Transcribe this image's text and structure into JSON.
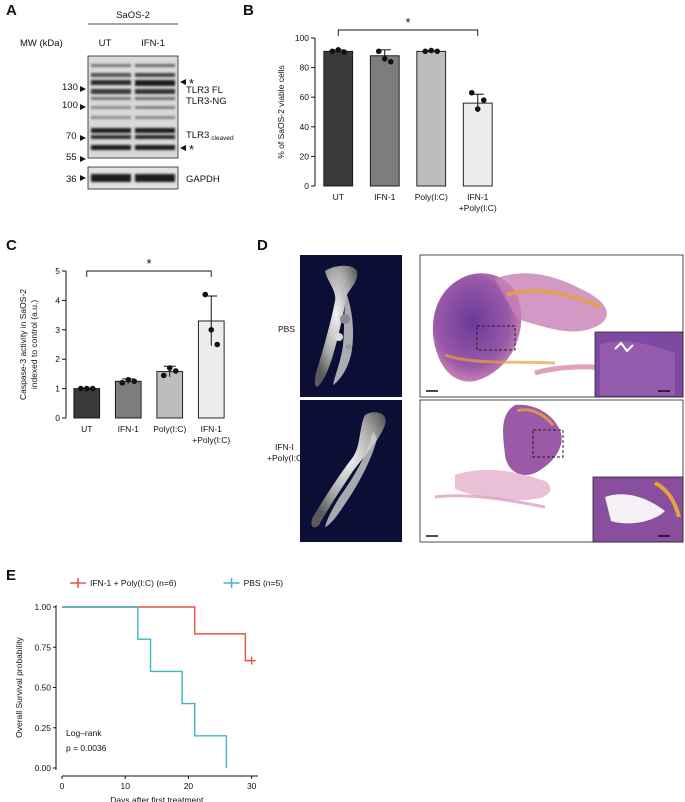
{
  "panels": {
    "A": {
      "letter": "A",
      "cell_line": "SaOS-2",
      "mw_label": "MW (kDa)",
      "lanes": [
        "UT",
        "IFN-1"
      ],
      "markers": [
        "130",
        "100",
        "70",
        "55",
        "36"
      ],
      "bands": {
        "star1": "*",
        "tlr3_fl": "TLR3 FL",
        "tlr3_ng": "TLR3-NG",
        "tlr3": "TLR3",
        "cleaved": "cleaved",
        "star2": "*",
        "gapdh": "GAPDH"
      }
    },
    "B": {
      "letter": "B",
      "significance": "*"
    },
    "C": {
      "letter": "C",
      "significance": "*"
    },
    "D": {
      "letter": "D",
      "rows": [
        {
          "label": [
            "PBS"
          ]
        },
        {
          "label": [
            "IFN-I",
            "+Poly(I:C)"
          ]
        }
      ]
    },
    "E": {
      "letter": "E",
      "logrank_title": "Log–rank",
      "logrank_p": "p = 0.0036"
    }
  },
  "chart_data": [
    {
      "panel": "B",
      "type": "bar",
      "categories": [
        [
          "UT"
        ],
        [
          "IFN-1"
        ],
        [
          "Poly(I:C)"
        ],
        [
          "IFN-1",
          "+Poly(I:C)"
        ]
      ],
      "values": [
        91,
        88,
        91,
        56
      ],
      "errors": [
        1,
        4,
        0.5,
        6
      ],
      "points": [
        [
          91,
          92,
          90.5
        ],
        [
          91,
          86,
          84
        ],
        [
          91,
          91.5,
          91
        ],
        [
          63,
          52,
          58
        ]
      ],
      "bar_colors": [
        "#3a3a3a",
        "#7d7d7d",
        "#bdbdbd",
        "#ececec"
      ],
      "ylabel": "% of SaOS-2 viable cells",
      "ylim": [
        0,
        100
      ],
      "yticks": [
        0,
        20,
        40,
        60,
        80,
        100
      ],
      "significance": {
        "from": 0,
        "to": 3,
        "label": "*"
      }
    },
    {
      "panel": "C",
      "type": "bar",
      "categories": [
        [
          "UT"
        ],
        [
          "IFN-1"
        ],
        [
          "Poly(I:C)"
        ],
        [
          "IFN-1",
          "+Poly(I:C)"
        ]
      ],
      "values": [
        1.0,
        1.25,
        1.58,
        3.3
      ],
      "errors": [
        0.02,
        0.08,
        0.18,
        0.85
      ],
      "points": [
        [
          1.0,
          1.0,
          1.0
        ],
        [
          1.2,
          1.3,
          1.25
        ],
        [
          1.45,
          1.7,
          1.6
        ],
        [
          4.2,
          3.0,
          2.5
        ]
      ],
      "bar_colors": [
        "#3a3a3a",
        "#7d7d7d",
        "#bdbdbd",
        "#ececec"
      ],
      "ylabel": [
        "Caspase-3 activity in SaOS-2",
        "indexed to control (a.u.)"
      ],
      "ylim": [
        0,
        5
      ],
      "yticks": [
        0,
        1,
        2,
        3,
        4,
        5
      ],
      "significance": {
        "from": 0,
        "to": 3,
        "label": "*"
      }
    },
    {
      "panel": "E",
      "type": "line",
      "ylabel": "Overall Survival probability",
      "xlabel": "Days after first treatment",
      "xlim": [
        0,
        31
      ],
      "ylim": [
        0,
        1
      ],
      "xticks": [
        0,
        10,
        20,
        30
      ],
      "yticks": [
        0,
        0.25,
        0.5,
        0.75,
        1
      ],
      "ytick_labels": [
        "0.00",
        "0.25",
        "0.50",
        "0.75",
        "1.00"
      ],
      "legend_position": "top",
      "series": [
        {
          "name": "IFN-1 + Poly(I:C) (n=6)",
          "color": "#e8533c",
          "steps": [
            [
              0,
              1.0
            ],
            [
              21,
              0.833
            ],
            [
              29,
              0.667
            ]
          ],
          "end": 30,
          "censored": [
            [
              30,
              0.667
            ]
          ]
        },
        {
          "name": "PBS (n=5)",
          "color": "#3fb5c8",
          "steps": [
            [
              0,
              1.0
            ],
            [
              12,
              0.8
            ],
            [
              14,
              0.6
            ],
            [
              19,
              0.4
            ],
            [
              21,
              0.2
            ],
            [
              26,
              0.0
            ]
          ],
          "end": 26,
          "censored": []
        }
      ]
    }
  ]
}
